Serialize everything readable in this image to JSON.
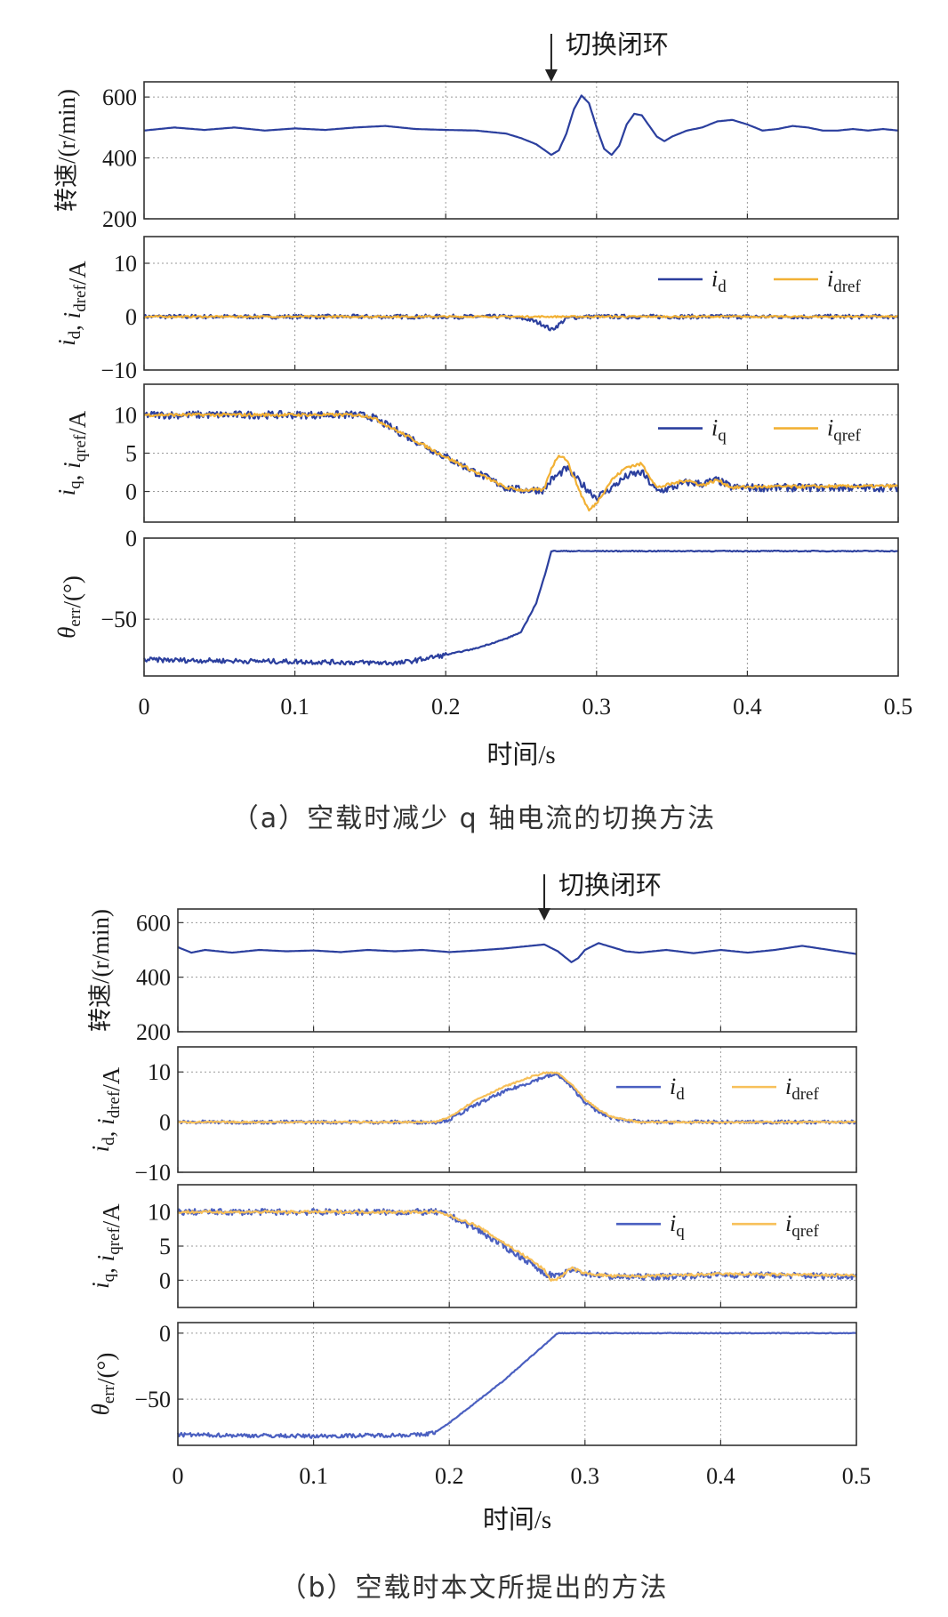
{
  "chart_data": [
    {
      "id": "a",
      "type": "line",
      "caption": "（a）空载时减少 q 轴电流的切换方法",
      "xlabel": "时间/s",
      "xlim": [
        0,
        0.5
      ],
      "xticks": [
        "0",
        "0.1",
        "0.2",
        "0.3",
        "0.4",
        "0.5"
      ],
      "annotation": {
        "text": "切换闭环",
        "x": 0.27
      },
      "panels": [
        {
          "ylabel": "转速/(r/min)",
          "ylim": [
            200,
            650
          ],
          "yticks": [
            200,
            400,
            600
          ],
          "series": [
            {
              "color": "#2b3f9e",
              "x": [
                0,
                0.02,
                0.04,
                0.06,
                0.08,
                0.1,
                0.12,
                0.14,
                0.16,
                0.18,
                0.2,
                0.22,
                0.24,
                0.25,
                0.26,
                0.27,
                0.275,
                0.28,
                0.285,
                0.29,
                0.295,
                0.3,
                0.305,
                0.31,
                0.315,
                0.32,
                0.325,
                0.33,
                0.335,
                0.34,
                0.345,
                0.35,
                0.36,
                0.37,
                0.38,
                0.39,
                0.4,
                0.41,
                0.42,
                0.43,
                0.44,
                0.45,
                0.46,
                0.47,
                0.48,
                0.49,
                0.5
              ],
              "y": [
                490,
                500,
                492,
                500,
                490,
                497,
                492,
                500,
                505,
                495,
                492,
                490,
                480,
                465,
                445,
                410,
                425,
                480,
                560,
                605,
                580,
                500,
                430,
                410,
                440,
                510,
                545,
                540,
                505,
                470,
                455,
                470,
                490,
                500,
                520,
                525,
                510,
                490,
                495,
                505,
                500,
                490,
                490,
                495,
                490,
                495,
                490
              ]
            }
          ]
        },
        {
          "ylabel": "i_d, i_dref / A",
          "ylim": [
            -10,
            15
          ],
          "yticks": [
            -10,
            0,
            10
          ],
          "legend": [
            "i_d",
            "i_dref"
          ],
          "series": [
            {
              "name": "i_d",
              "color": "#2b3f9e",
              "noise": 0.4,
              "x": [
                0,
                0.24,
                0.255,
                0.265,
                0.27,
                0.275,
                0.28,
                0.29,
                0.5
              ],
              "y": [
                0,
                0,
                -0.5,
                -1.5,
                -2.5,
                -1.5,
                -0.3,
                0,
                0
              ]
            },
            {
              "name": "i_dref",
              "color": "#f2b135",
              "noise": 0.15,
              "x": [
                0,
                0.5
              ],
              "y": [
                0,
                0
              ]
            }
          ]
        },
        {
          "ylabel": "i_q, i_qref / A",
          "ylim": [
            -4,
            14
          ],
          "yticks": [
            0,
            5,
            10
          ],
          "legend": [
            "i_q",
            "i_qref"
          ],
          "series": [
            {
              "name": "i_q",
              "color": "#2b3f9e",
              "noise": 0.5,
              "x": [
                0,
                0.14,
                0.15,
                0.2,
                0.24,
                0.25,
                0.265,
                0.27,
                0.28,
                0.29,
                0.3,
                0.31,
                0.32,
                0.33,
                0.34,
                0.35,
                0.36,
                0.37,
                0.38,
                0.39,
                0.4,
                0.5
              ],
              "y": [
                10,
                10,
                9.8,
                4.5,
                0.5,
                0.2,
                0.2,
                1.5,
                3,
                1,
                -0.8,
                0.5,
                2,
                2.5,
                0,
                0.5,
                1.2,
                1,
                1.5,
                0.5,
                0.5,
                0.5
              ]
            },
            {
              "name": "i_qref",
              "color": "#f2b135",
              "noise": 0.2,
              "x": [
                0,
                0.14,
                0.15,
                0.2,
                0.24,
                0.25,
                0.265,
                0.27,
                0.275,
                0.28,
                0.29,
                0.295,
                0.3,
                0.31,
                0.32,
                0.33,
                0.34,
                0.35,
                0.36,
                0.37,
                0.38,
                0.39,
                0.4,
                0.5
              ],
              "y": [
                10,
                10,
                9.8,
                4.5,
                0.5,
                0.2,
                0.2,
                3,
                4.8,
                4.2,
                -0.5,
                -2.5,
                -1.5,
                1.5,
                3.2,
                3.6,
                0.5,
                1,
                1.5,
                0.8,
                1.5,
                0.5,
                0.6,
                0.7
              ]
            }
          ]
        },
        {
          "ylabel": "θ_err / (°)",
          "ylim": [
            -85,
            0
          ],
          "yticks": [
            -50,
            0
          ],
          "series": [
            {
              "color": "#2b3f9e",
              "noise": 1.5,
              "noiseUntil": 0.2,
              "x": [
                0,
                0.17,
                0.2,
                0.22,
                0.24,
                0.25,
                0.26,
                0.265,
                0.27,
                0.5
              ],
              "y": [
                -75,
                -77,
                -72,
                -68,
                -62,
                -58,
                -40,
                -25,
                -8,
                -8
              ]
            }
          ]
        }
      ]
    },
    {
      "id": "b",
      "type": "line",
      "caption": "（b）空载时本文所提出的方法",
      "xlabel": "时间/s",
      "xlim": [
        0,
        0.5
      ],
      "xticks": [
        "0",
        "0.1",
        "0.2",
        "0.3",
        "0.4",
        "0.5"
      ],
      "annotation": {
        "text": "切换闭环",
        "x": 0.27
      },
      "panels": [
        {
          "ylabel": "转速/(r/min)",
          "ylim": [
            200,
            650
          ],
          "yticks": [
            200,
            400,
            600
          ],
          "series": [
            {
              "color": "#2b3f9e",
              "x": [
                0,
                0.01,
                0.02,
                0.04,
                0.06,
                0.08,
                0.1,
                0.12,
                0.14,
                0.16,
                0.18,
                0.2,
                0.22,
                0.24,
                0.26,
                0.27,
                0.28,
                0.29,
                0.295,
                0.3,
                0.31,
                0.32,
                0.33,
                0.34,
                0.36,
                0.38,
                0.4,
                0.42,
                0.44,
                0.46,
                0.48,
                0.5
              ],
              "y": [
                510,
                490,
                500,
                490,
                500,
                495,
                498,
                492,
                500,
                495,
                500,
                492,
                498,
                505,
                515,
                520,
                495,
                455,
                470,
                500,
                525,
                510,
                495,
                490,
                500,
                488,
                500,
                490,
                500,
                515,
                500,
                485
              ]
            }
          ]
        },
        {
          "ylabel": "i_d, i_dref / A",
          "ylim": [
            -10,
            15
          ],
          "yticks": [
            -10,
            0,
            10
          ],
          "legend": [
            "i_d",
            "i_dref"
          ],
          "series": [
            {
              "name": "i_d",
              "color": "#4a5fc0",
              "noise": 0.35,
              "x": [
                0,
                0.19,
                0.2,
                0.22,
                0.24,
                0.26,
                0.27,
                0.28,
                0.29,
                0.3,
                0.31,
                0.32,
                0.34,
                0.5
              ],
              "y": [
                0,
                0,
                0.5,
                3.5,
                6,
                8,
                9,
                9.5,
                7,
                4,
                2,
                0.8,
                0,
                0
              ]
            },
            {
              "name": "i_dref",
              "color": "#f7c05a",
              "noise": 0.15,
              "x": [
                0,
                0.19,
                0.2,
                0.22,
                0.24,
                0.26,
                0.27,
                0.28,
                0.29,
                0.3,
                0.31,
                0.32,
                0.34,
                0.5
              ],
              "y": [
                0,
                0,
                1,
                4.5,
                7,
                9,
                9.8,
                9.8,
                7.5,
                4.5,
                2.5,
                1,
                0,
                0
              ]
            }
          ]
        },
        {
          "ylabel": "i_q, i_qref / A",
          "ylim": [
            -4,
            14
          ],
          "yticks": [
            0,
            5,
            10
          ],
          "legend": [
            "i_q",
            "i_qref"
          ],
          "series": [
            {
              "name": "i_q",
              "color": "#4a5fc0",
              "noise": 0.45,
              "x": [
                0,
                0.19,
                0.2,
                0.22,
                0.24,
                0.26,
                0.27,
                0.28,
                0.29,
                0.3,
                0.32,
                0.35,
                0.4,
                0.5
              ],
              "y": [
                10,
                10,
                9.5,
                7.5,
                5,
                2.5,
                1,
                0.5,
                1.5,
                1,
                0.5,
                0.5,
                0.8,
                0.6
              ]
            },
            {
              "name": "i_qref",
              "color": "#f7c05a",
              "noise": 0.2,
              "x": [
                0,
                0.19,
                0.2,
                0.22,
                0.24,
                0.26,
                0.27,
                0.275,
                0.28,
                0.29,
                0.3,
                0.32,
                0.35,
                0.4,
                0.5
              ],
              "y": [
                10,
                10,
                9.5,
                8,
                5.5,
                3,
                1.5,
                0,
                0.2,
                1.8,
                1,
                0.6,
                0.6,
                0.9,
                0.7
              ]
            }
          ]
        },
        {
          "ylabel": "θ_err / (°)",
          "ylim": [
            -85,
            8
          ],
          "yticks": [
            -50,
            0
          ],
          "series": [
            {
              "color": "#4a5fc0",
              "noise": 1.5,
              "noiseUntil": 0.19,
              "x": [
                0,
                0.1,
                0.18,
                0.19,
                0.2,
                0.22,
                0.24,
                0.26,
                0.28,
                0.5
              ],
              "y": [
                -77,
                -78,
                -77,
                -75,
                -68,
                -52,
                -36,
                -18,
                0,
                0
              ]
            }
          ]
        }
      ]
    }
  ]
}
